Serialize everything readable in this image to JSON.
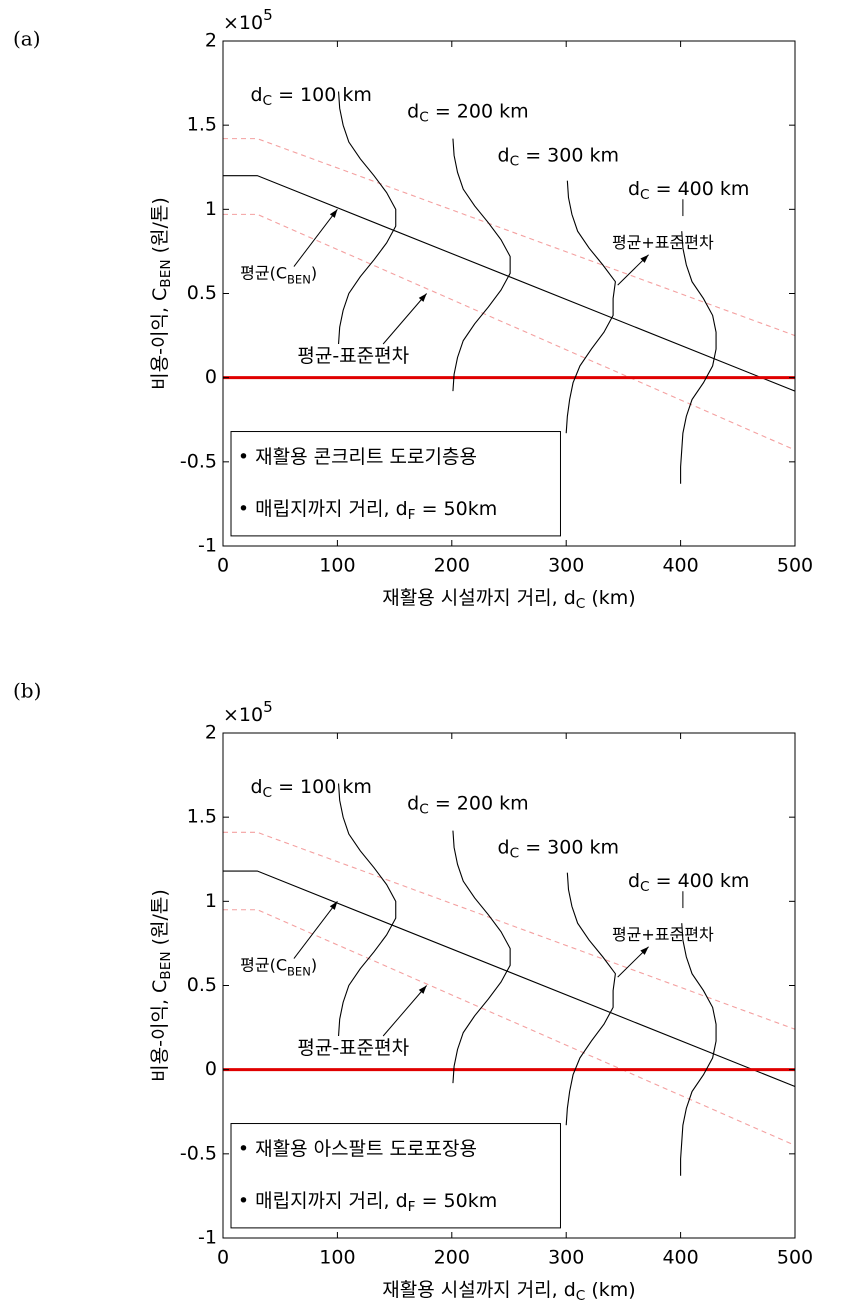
{
  "chart_data": [
    {
      "type": "line",
      "panel_label": "(a)",
      "y_multiplier": {
        "text": "×10",
        "sup": "5"
      },
      "xlabel": {
        "text": "재활용 시설까지 거리, d",
        "sub": "C",
        "tail": " (km)"
      },
      "ylabel": {
        "text": "비용-이익, C",
        "sub": "BEN",
        "tail": " (원/톤)"
      },
      "xlim": [
        0,
        500
      ],
      "ylim": [
        -1,
        2
      ],
      "xticks": [
        0,
        100,
        200,
        300,
        400,
        500
      ],
      "yticks": [
        -1,
        -0.5,
        0,
        0.5,
        1,
        1.5,
        2
      ],
      "series": [
        {
          "color": "#f4a0a0",
          "style": "dashed",
          "x": [
            0,
            30,
            500
          ],
          "values": [
            1.42,
            1.42,
            0.25
          ]
        },
        {
          "color": "#f4a0a0",
          "style": "dashed",
          "x": [
            0,
            30,
            500
          ],
          "values": [
            0.97,
            0.97,
            -0.43
          ]
        },
        {
          "color": "#000000",
          "style": "solid",
          "x": [
            0,
            30,
            500
          ],
          "values": [
            1.2,
            1.2,
            -0.08
          ]
        },
        {
          "color": "#e00000",
          "style": "thick",
          "x": [
            0,
            500
          ],
          "values": [
            0,
            0
          ]
        },
        {
          "color": "#000000",
          "style": "solid",
          "x": [
            101,
            102,
            105,
            110,
            120,
            132,
            143,
            151,
            151,
            143,
            132,
            120,
            110,
            105,
            102,
            101
          ],
          "values": [
            1.7,
            1.6,
            1.5,
            1.4,
            1.3,
            1.2,
            1.1,
            1.0,
            0.9,
            0.8,
            0.7,
            0.6,
            0.5,
            0.4,
            0.3,
            0.2
          ]
        },
        {
          "color": "#000000",
          "style": "solid",
          "x": [
            201,
            202,
            205,
            210,
            220,
            232,
            243,
            251,
            251,
            243,
            232,
            220,
            210,
            205,
            202,
            201
          ],
          "values": [
            1.42,
            1.32,
            1.22,
            1.12,
            1.02,
            0.92,
            0.82,
            0.72,
            0.62,
            0.52,
            0.42,
            0.32,
            0.22,
            0.12,
            0.02,
            -0.08
          ]
        },
        {
          "color": "#000000",
          "style": "solid",
          "x": [
            301,
            302,
            305,
            310,
            320,
            332,
            343,
            341,
            341,
            333,
            322,
            312,
            306,
            303,
            301,
            300
          ],
          "values": [
            1.17,
            1.07,
            0.97,
            0.87,
            0.77,
            0.67,
            0.57,
            0.47,
            0.37,
            0.27,
            0.17,
            0.07,
            -0.03,
            -0.13,
            -0.23,
            -0.33
          ]
        },
        {
          "color": "#000000",
          "style": "solid",
          "x": [
            401,
            402,
            405,
            410,
            420,
            428,
            431,
            431,
            428,
            420,
            410,
            405,
            402,
            401,
            400,
            400
          ],
          "values": [
            0.87,
            0.77,
            0.67,
            0.57,
            0.47,
            0.37,
            0.27,
            0.17,
            0.07,
            -0.03,
            -0.13,
            -0.23,
            -0.33,
            -0.43,
            -0.53,
            -0.63
          ]
        }
      ],
      "annotations": [
        {
          "text": "d",
          "sub": "C",
          "tail": " = 100 km"
        },
        {
          "text": "d",
          "sub": "C",
          "tail": " = 200 km"
        },
        {
          "text": "d",
          "sub": "C",
          "tail": " = 300 km"
        },
        {
          "text": "d",
          "sub": "C",
          "tail": " = 400 km"
        },
        {
          "text": "평균(C",
          "sub": "BEN",
          "tail": ")"
        },
        {
          "text": "평균+표준편차"
        },
        {
          "text": "평균-표준편차"
        }
      ],
      "legend_box": [
        {
          "text": "• 재활용 콘크리트 도로기층용"
        },
        {
          "text": "• 매립지까지 거리, d",
          "sub": "F",
          "tail": " = 50km"
        }
      ]
    },
    {
      "type": "line",
      "panel_label": "(b)",
      "y_multiplier": {
        "text": "×10",
        "sup": "5"
      },
      "xlabel": {
        "text": "재활용 시설까지 거리, d",
        "sub": "C",
        "tail": " (km)"
      },
      "ylabel": {
        "text": "비용-이익, C",
        "sub": "BEN",
        "tail": " (원/톤)"
      },
      "xlim": [
        0,
        500
      ],
      "ylim": [
        -1,
        2
      ],
      "xticks": [
        0,
        100,
        200,
        300,
        400,
        500
      ],
      "yticks": [
        -1,
        -0.5,
        0,
        0.5,
        1,
        1.5,
        2
      ],
      "series": [
        {
          "color": "#f4a0a0",
          "style": "dashed",
          "x": [
            0,
            30,
            500
          ],
          "values": [
            1.41,
            1.41,
            0.24
          ]
        },
        {
          "color": "#f4a0a0",
          "style": "dashed",
          "x": [
            0,
            30,
            500
          ],
          "values": [
            0.95,
            0.95,
            -0.45
          ]
        },
        {
          "color": "#000000",
          "style": "solid",
          "x": [
            0,
            30,
            500
          ],
          "values": [
            1.18,
            1.18,
            -0.1
          ]
        },
        {
          "color": "#e00000",
          "style": "thick",
          "x": [
            0,
            500
          ],
          "values": [
            0,
            0
          ]
        },
        {
          "color": "#000000",
          "style": "solid",
          "x": [
            101,
            102,
            105,
            110,
            120,
            132,
            143,
            151,
            151,
            143,
            132,
            120,
            110,
            105,
            102,
            101
          ],
          "values": [
            1.7,
            1.6,
            1.5,
            1.4,
            1.3,
            1.2,
            1.1,
            1.0,
            0.9,
            0.8,
            0.7,
            0.6,
            0.5,
            0.4,
            0.3,
            0.2
          ]
        },
        {
          "color": "#000000",
          "style": "solid",
          "x": [
            201,
            202,
            205,
            210,
            220,
            232,
            243,
            251,
            251,
            243,
            232,
            220,
            210,
            205,
            202,
            201
          ],
          "values": [
            1.42,
            1.32,
            1.22,
            1.12,
            1.02,
            0.92,
            0.82,
            0.72,
            0.62,
            0.52,
            0.42,
            0.32,
            0.22,
            0.12,
            0.02,
            -0.08
          ]
        },
        {
          "color": "#000000",
          "style": "solid",
          "x": [
            301,
            302,
            305,
            310,
            320,
            332,
            343,
            341,
            341,
            333,
            322,
            312,
            306,
            303,
            301,
            300
          ],
          "values": [
            1.17,
            1.07,
            0.97,
            0.87,
            0.77,
            0.67,
            0.57,
            0.47,
            0.37,
            0.27,
            0.17,
            0.07,
            -0.03,
            -0.13,
            -0.23,
            -0.33
          ]
        },
        {
          "color": "#000000",
          "style": "solid",
          "x": [
            401,
            402,
            405,
            410,
            420,
            428,
            431,
            431,
            428,
            420,
            410,
            405,
            402,
            401,
            400,
            400
          ],
          "values": [
            0.87,
            0.77,
            0.67,
            0.57,
            0.47,
            0.37,
            0.27,
            0.17,
            0.07,
            -0.03,
            -0.13,
            -0.23,
            -0.33,
            -0.43,
            -0.53,
            -0.63
          ]
        }
      ],
      "annotations": [
        {
          "text": "d",
          "sub": "C",
          "tail": " = 100 km"
        },
        {
          "text": "d",
          "sub": "C",
          "tail": " = 200 km"
        },
        {
          "text": "d",
          "sub": "C",
          "tail": " = 300 km"
        },
        {
          "text": "d",
          "sub": "C",
          "tail": " = 400 km"
        },
        {
          "text": "평균(C",
          "sub": "BEN",
          "tail": ")"
        },
        {
          "text": "평균+표준편차"
        },
        {
          "text": "평균-표준편차"
        }
      ],
      "legend_box": [
        {
          "text": "• 재활용 아스팔트 도로포장용"
        },
        {
          "text": "• 매립지까지 거리, d",
          "sub": "F",
          "tail": " = 50km"
        }
      ]
    }
  ]
}
